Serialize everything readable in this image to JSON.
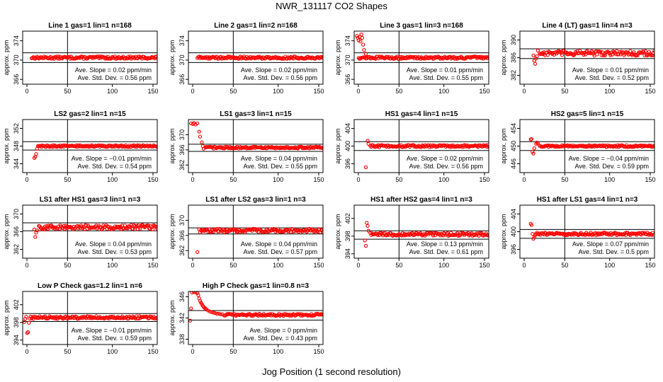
{
  "page": {
    "title": "NWR_131117  CO2 Shapes",
    "x_caption": "Jog Position (1 second resolution)"
  },
  "colors": {
    "points": "#ff0000",
    "refline": "#000000"
  },
  "chart_data": [
    {
      "type": "scatter",
      "title": "Line 1 gas=1 lin=1 n=168",
      "ylabel": "approx. ppm",
      "xlim": [
        0,
        150
      ],
      "ylim": [
        365,
        376
      ],
      "xticks": [
        0,
        50,
        100,
        150
      ],
      "yticks": [
        366,
        370,
        374
      ],
      "ref_lines": [
        371.5,
        369.5
      ],
      "vline": 50,
      "slope": "Ave. Slope = 0.02  ppm/min",
      "stddev": "Ave. Std. Dev. = 0.56  ppm",
      "series_desc": {
        "start": 10,
        "end": 150,
        "base": 370.5,
        "noise": 0.25
      }
    },
    {
      "type": "scatter",
      "title": "Line 2 gas=1 lin=2 n=168",
      "ylabel": "approx. ppm",
      "xlim": [
        0,
        150
      ],
      "ylim": [
        365,
        376
      ],
      "xticks": [
        0,
        50,
        100,
        150
      ],
      "yticks": [
        366,
        370,
        374
      ],
      "ref_lines": [
        371.5,
        369.5
      ],
      "vline": 50,
      "slope": "Ave. Slope = 0.02  ppm/min",
      "stddev": "Ave. Std. Dev. = 0.56  ppm",
      "series_desc": {
        "start": 10,
        "end": 150,
        "base": 370.5,
        "noise": 0.25
      }
    },
    {
      "type": "scatter",
      "title": "Line 3 gas=1 lin=3 n=168",
      "ylabel": "approx. ppm",
      "xlim": [
        0,
        150
      ],
      "ylim": [
        365,
        376
      ],
      "xticks": [
        0,
        50,
        100,
        150
      ],
      "yticks": [
        366,
        370,
        374
      ],
      "ref_lines": [
        371.5,
        369.5
      ],
      "vline": 50,
      "slope": "Ave. Slope = 0.01  ppm/min",
      "stddev": "Ave. Std. Dev. = 0.55  ppm",
      "series_desc": {
        "start": 5,
        "end": 150,
        "base": 370.5,
        "noise": 0.25
      },
      "early_points": [
        [
          3,
          375
        ],
        [
          4,
          374.6
        ],
        [
          5,
          374.1
        ],
        [
          6,
          374.8
        ],
        [
          7,
          373.9
        ],
        [
          8,
          375.3
        ],
        [
          9,
          374.6
        ],
        [
          10,
          373.2
        ],
        [
          11,
          372.1
        ],
        [
          13,
          371.3
        ]
      ]
    },
    {
      "type": "scatter",
      "title": "Line 4 (LT) gas=1 lin=4 n=3",
      "ylabel": "approx. ppm",
      "xlim": [
        0,
        150
      ],
      "ylim": [
        380,
        392
      ],
      "xticks": [
        0,
        50,
        100,
        150
      ],
      "yticks": [
        382,
        386,
        390
      ],
      "ref_lines": [
        388,
        385.8
      ],
      "vline": 50,
      "slope": "Ave. Slope = 0.01  ppm/min",
      "stddev": "Ave. Std. Dev. = 0.52  ppm",
      "series_desc": {
        "start": 22,
        "end": 150,
        "base": 387,
        "noise": 0.55
      },
      "early_points": [
        [
          15,
          386.5
        ],
        [
          16,
          385.3
        ],
        [
          17,
          384.6
        ],
        [
          18,
          385.8
        ],
        [
          19,
          386.3
        ],
        [
          20,
          387.6
        ]
      ]
    },
    {
      "type": "scatter",
      "title": "LS2 gas=2 lin=1 n=15",
      "ylabel": "approx. ppm",
      "xlim": [
        0,
        150
      ],
      "ylim": [
        342,
        354
      ],
      "xticks": [
        0,
        50,
        100,
        150
      ],
      "yticks": [
        344,
        348,
        352
      ],
      "ref_lines": [
        349,
        347.1
      ],
      "vline": 50,
      "slope": "Ave. Slope = −0.01  ppm/min",
      "stddev": "Ave. Std. Dev. = 0.54  ppm",
      "series_desc": {
        "start": 17,
        "end": 150,
        "base": 348,
        "noise": 0.2
      },
      "early_points": [
        [
          13,
          345.3
        ],
        [
          14,
          345.6
        ],
        [
          15,
          346.2
        ],
        [
          16,
          347.4
        ]
      ]
    },
    {
      "type": "scatter",
      "title": "LS1 gas=3 lin=1 n=15",
      "ylabel": "approx. ppm",
      "xlim": [
        0,
        150
      ],
      "ylim": [
        360,
        374
      ],
      "xticks": [
        0,
        50,
        100,
        150
      ],
      "yticks": [
        362,
        366,
        370
      ],
      "ref_lines": [
        367.5,
        365.6
      ],
      "vline": 50,
      "slope": "Ave. Slope = 0.04  ppm/min",
      "stddev": "Ave. Std. Dev. = 0.55  ppm",
      "series_desc": {
        "start": 19,
        "end": 150,
        "base": 366.6,
        "noise": 0.25
      },
      "early_points": [
        [
          3,
          373
        ],
        [
          5,
          372.8
        ],
        [
          6,
          373.1
        ],
        [
          8,
          372.7
        ],
        [
          10,
          373
        ],
        [
          12,
          370.8
        ],
        [
          13,
          369.5
        ],
        [
          15,
          368
        ],
        [
          16,
          367
        ],
        [
          17,
          366.3
        ]
      ]
    },
    {
      "type": "scatter",
      "title": "HS1 gas=4 lin=1 n=15",
      "ylabel": "approx. ppm",
      "xlim": [
        0,
        150
      ],
      "ylim": [
        394,
        406
      ],
      "xticks": [
        0,
        50,
        100,
        150
      ],
      "yticks": [
        396,
        400,
        404
      ],
      "ref_lines": [
        401,
        399
      ],
      "vline": 50,
      "slope": "Ave. Slope = 0.02  ppm/min",
      "stddev": "Ave. Std. Dev. = 0.56  ppm",
      "series_desc": {
        "start": 18,
        "end": 150,
        "base": 400,
        "noise": 0.25
      },
      "early_points": [
        [
          13,
          395.2
        ],
        [
          15,
          401.2
        ],
        [
          16,
          400.5
        ]
      ]
    },
    {
      "type": "scatter",
      "title": "HS2 gas=5 lin=1 n=15",
      "ylabel": "approx. ppm",
      "xlim": [
        0,
        150
      ],
      "ylim": [
        444,
        456
      ],
      "xticks": [
        0,
        50,
        100,
        150
      ],
      "yticks": [
        446,
        450,
        454
      ],
      "ref_lines": [
        451,
        449
      ],
      "vline": 50,
      "slope": "Ave. Slope = −0.04  ppm/min",
      "stddev": "Ave. Std. Dev. = 0.59  ppm",
      "series_desc": {
        "start": 22,
        "end": 150,
        "base": 450,
        "noise": 0.2
      },
      "early_points": [
        [
          12,
          451.5
        ],
        [
          13,
          451.6
        ],
        [
          14,
          448.7
        ],
        [
          15,
          448.3
        ],
        [
          16,
          449.5
        ],
        [
          18,
          450.5
        ],
        [
          19,
          450.8
        ],
        [
          20,
          450.6
        ]
      ]
    },
    {
      "type": "scatter",
      "title": "LS1 after HS1 gas=3 lin=1 n=3",
      "ylabel": "approx. ppm",
      "xlim": [
        0,
        150
      ],
      "ylim": [
        360,
        372
      ],
      "xticks": [
        0,
        50,
        100,
        150
      ],
      "yticks": [
        362,
        366,
        370
      ],
      "ref_lines": [
        368,
        366.2
      ],
      "vline": 50,
      "slope": "Ave. Slope = 0.04  ppm/min",
      "stddev": "Ave. Std. Dev. = 0.53  ppm",
      "series_desc": {
        "start": 18,
        "end": 150,
        "base": 367,
        "noise": 0.5
      },
      "early_points": [
        [
          13,
          366.5
        ],
        [
          14,
          364.8
        ],
        [
          15,
          365.8
        ],
        [
          16,
          366.3
        ]
      ]
    },
    {
      "type": "scatter",
      "title": "LS1 after LS2 gas=3 lin=1 n=3",
      "ylabel": "approx. ppm",
      "xlim": [
        0,
        150
      ],
      "ylim": [
        360,
        374
      ],
      "xticks": [
        0,
        50,
        100,
        150
      ],
      "yticks": [
        362,
        366,
        370
      ],
      "ref_lines": [
        368,
        366.4
      ],
      "vline": 50,
      "slope": "Ave. Slope = 0.04  ppm/min",
      "stddev": "Ave. Std. Dev. = 0.57  ppm",
      "series_desc": {
        "start": 12,
        "end": 150,
        "base": 367.3,
        "noise": 0.45
      },
      "early_points": [
        [
          10,
          361.6
        ]
      ]
    },
    {
      "type": "scatter",
      "title": "HS1 after HS2 gas=4 lin=1 n=3",
      "ylabel": "approx. ppm",
      "xlim": [
        0,
        150
      ],
      "ylim": [
        393,
        405
      ],
      "xticks": [
        0,
        50,
        100,
        150
      ],
      "yticks": [
        394,
        398,
        402
      ],
      "ref_lines": [
        399.2,
        397.3
      ],
      "vline": 50,
      "slope": "Ave. Slope = 0.13  ppm/min",
      "stddev": "Ave. Std. Dev. = 0.61  ppm",
      "series_desc": {
        "start": 18,
        "end": 150,
        "base": 398.4,
        "noise": 0.35
      },
      "early_points": [
        [
          12,
          397
        ],
        [
          13,
          395.8
        ],
        [
          14,
          401
        ],
        [
          15,
          400.3
        ],
        [
          16,
          399.2
        ]
      ]
    },
    {
      "type": "scatter",
      "title": "HS1 after LS1 gas=4 lin=1 n=3",
      "ylabel": "approx. ppm",
      "xlim": [
        0,
        150
      ],
      "ylim": [
        394,
        406
      ],
      "xticks": [
        0,
        50,
        100,
        150
      ],
      "yticks": [
        396,
        400,
        404
      ],
      "ref_lines": [
        400.5,
        398.5
      ],
      "vline": 50,
      "slope": "Ave. Slope = 0.07  ppm/min",
      "stddev": "Ave. Std. Dev. = 0.5  ppm",
      "series_desc": {
        "start": 17,
        "end": 150,
        "base": 399.5,
        "noise": 0.3
      },
      "early_points": [
        [
          12,
          401.8
        ],
        [
          13,
          401.5
        ],
        [
          14,
          399.5
        ],
        [
          15,
          398.4
        ],
        [
          16,
          398.8
        ]
      ]
    },
    {
      "type": "scatter",
      "title": "Low P Check gas=1.2 lin=1 n=6",
      "ylabel": "approx. ppm",
      "xlim": [
        0,
        150
      ],
      "ylim": [
        393,
        405
      ],
      "xticks": [
        0,
        50,
        100,
        150
      ],
      "yticks": [
        394,
        398,
        402
      ],
      "ref_lines": [
        400,
        398.2
      ],
      "vline": 50,
      "slope": "Ave. Slope = −0.01  ppm/min",
      "stddev": "Ave. Std. Dev. = 0.59  ppm",
      "series_desc": {
        "start": 8,
        "end": 150,
        "base": 399.1,
        "noise": 0.3
      },
      "early_points": [
        [
          2,
          398.1
        ],
        [
          3,
          398.8
        ],
        [
          4,
          399.3
        ],
        [
          5,
          395.6
        ],
        [
          6,
          395.8
        ],
        [
          7,
          397.9
        ]
      ]
    },
    {
      "type": "scatter",
      "title": "High P Check gas=1 lin=0.8 n=3",
      "ylabel": "approx. ppm",
      "xlim": [
        0,
        150
      ],
      "ylim": [
        337,
        347
      ],
      "xticks": [
        0,
        50,
        100,
        150
      ],
      "yticks": [
        338,
        342,
        346
      ],
      "ref_lines": [
        343.4,
        341.6
      ],
      "vline": 50,
      "slope": "Ave. Slope = 0  ppm/min",
      "stddev": "Ave. Std. Dev. = 0.43  ppm",
      "series_desc": {
        "start": 40,
        "end": 150,
        "base": 342.6,
        "noise": 0.2
      },
      "early_points": [
        [
          2,
          341.5
        ],
        [
          3,
          343.8
        ],
        [
          4,
          346.8
        ],
        [
          6,
          346.9
        ],
        [
          8,
          346.8
        ],
        [
          10,
          346.7
        ],
        [
          11,
          346.3
        ],
        [
          12,
          345.7
        ],
        [
          13,
          345.2
        ],
        [
          14,
          344.9
        ],
        [
          15,
          344.6
        ],
        [
          16,
          344.3
        ],
        [
          17,
          344.1
        ],
        [
          18,
          343.9
        ],
        [
          19,
          343.8
        ],
        [
          20,
          343.6
        ],
        [
          22,
          343.4
        ],
        [
          24,
          343.2
        ],
        [
          26,
          343.1
        ],
        [
          28,
          343
        ],
        [
          30,
          342.9
        ],
        [
          32,
          342.8
        ],
        [
          34,
          342.8
        ],
        [
          36,
          342.7
        ],
        [
          38,
          342.7
        ]
      ]
    }
  ]
}
